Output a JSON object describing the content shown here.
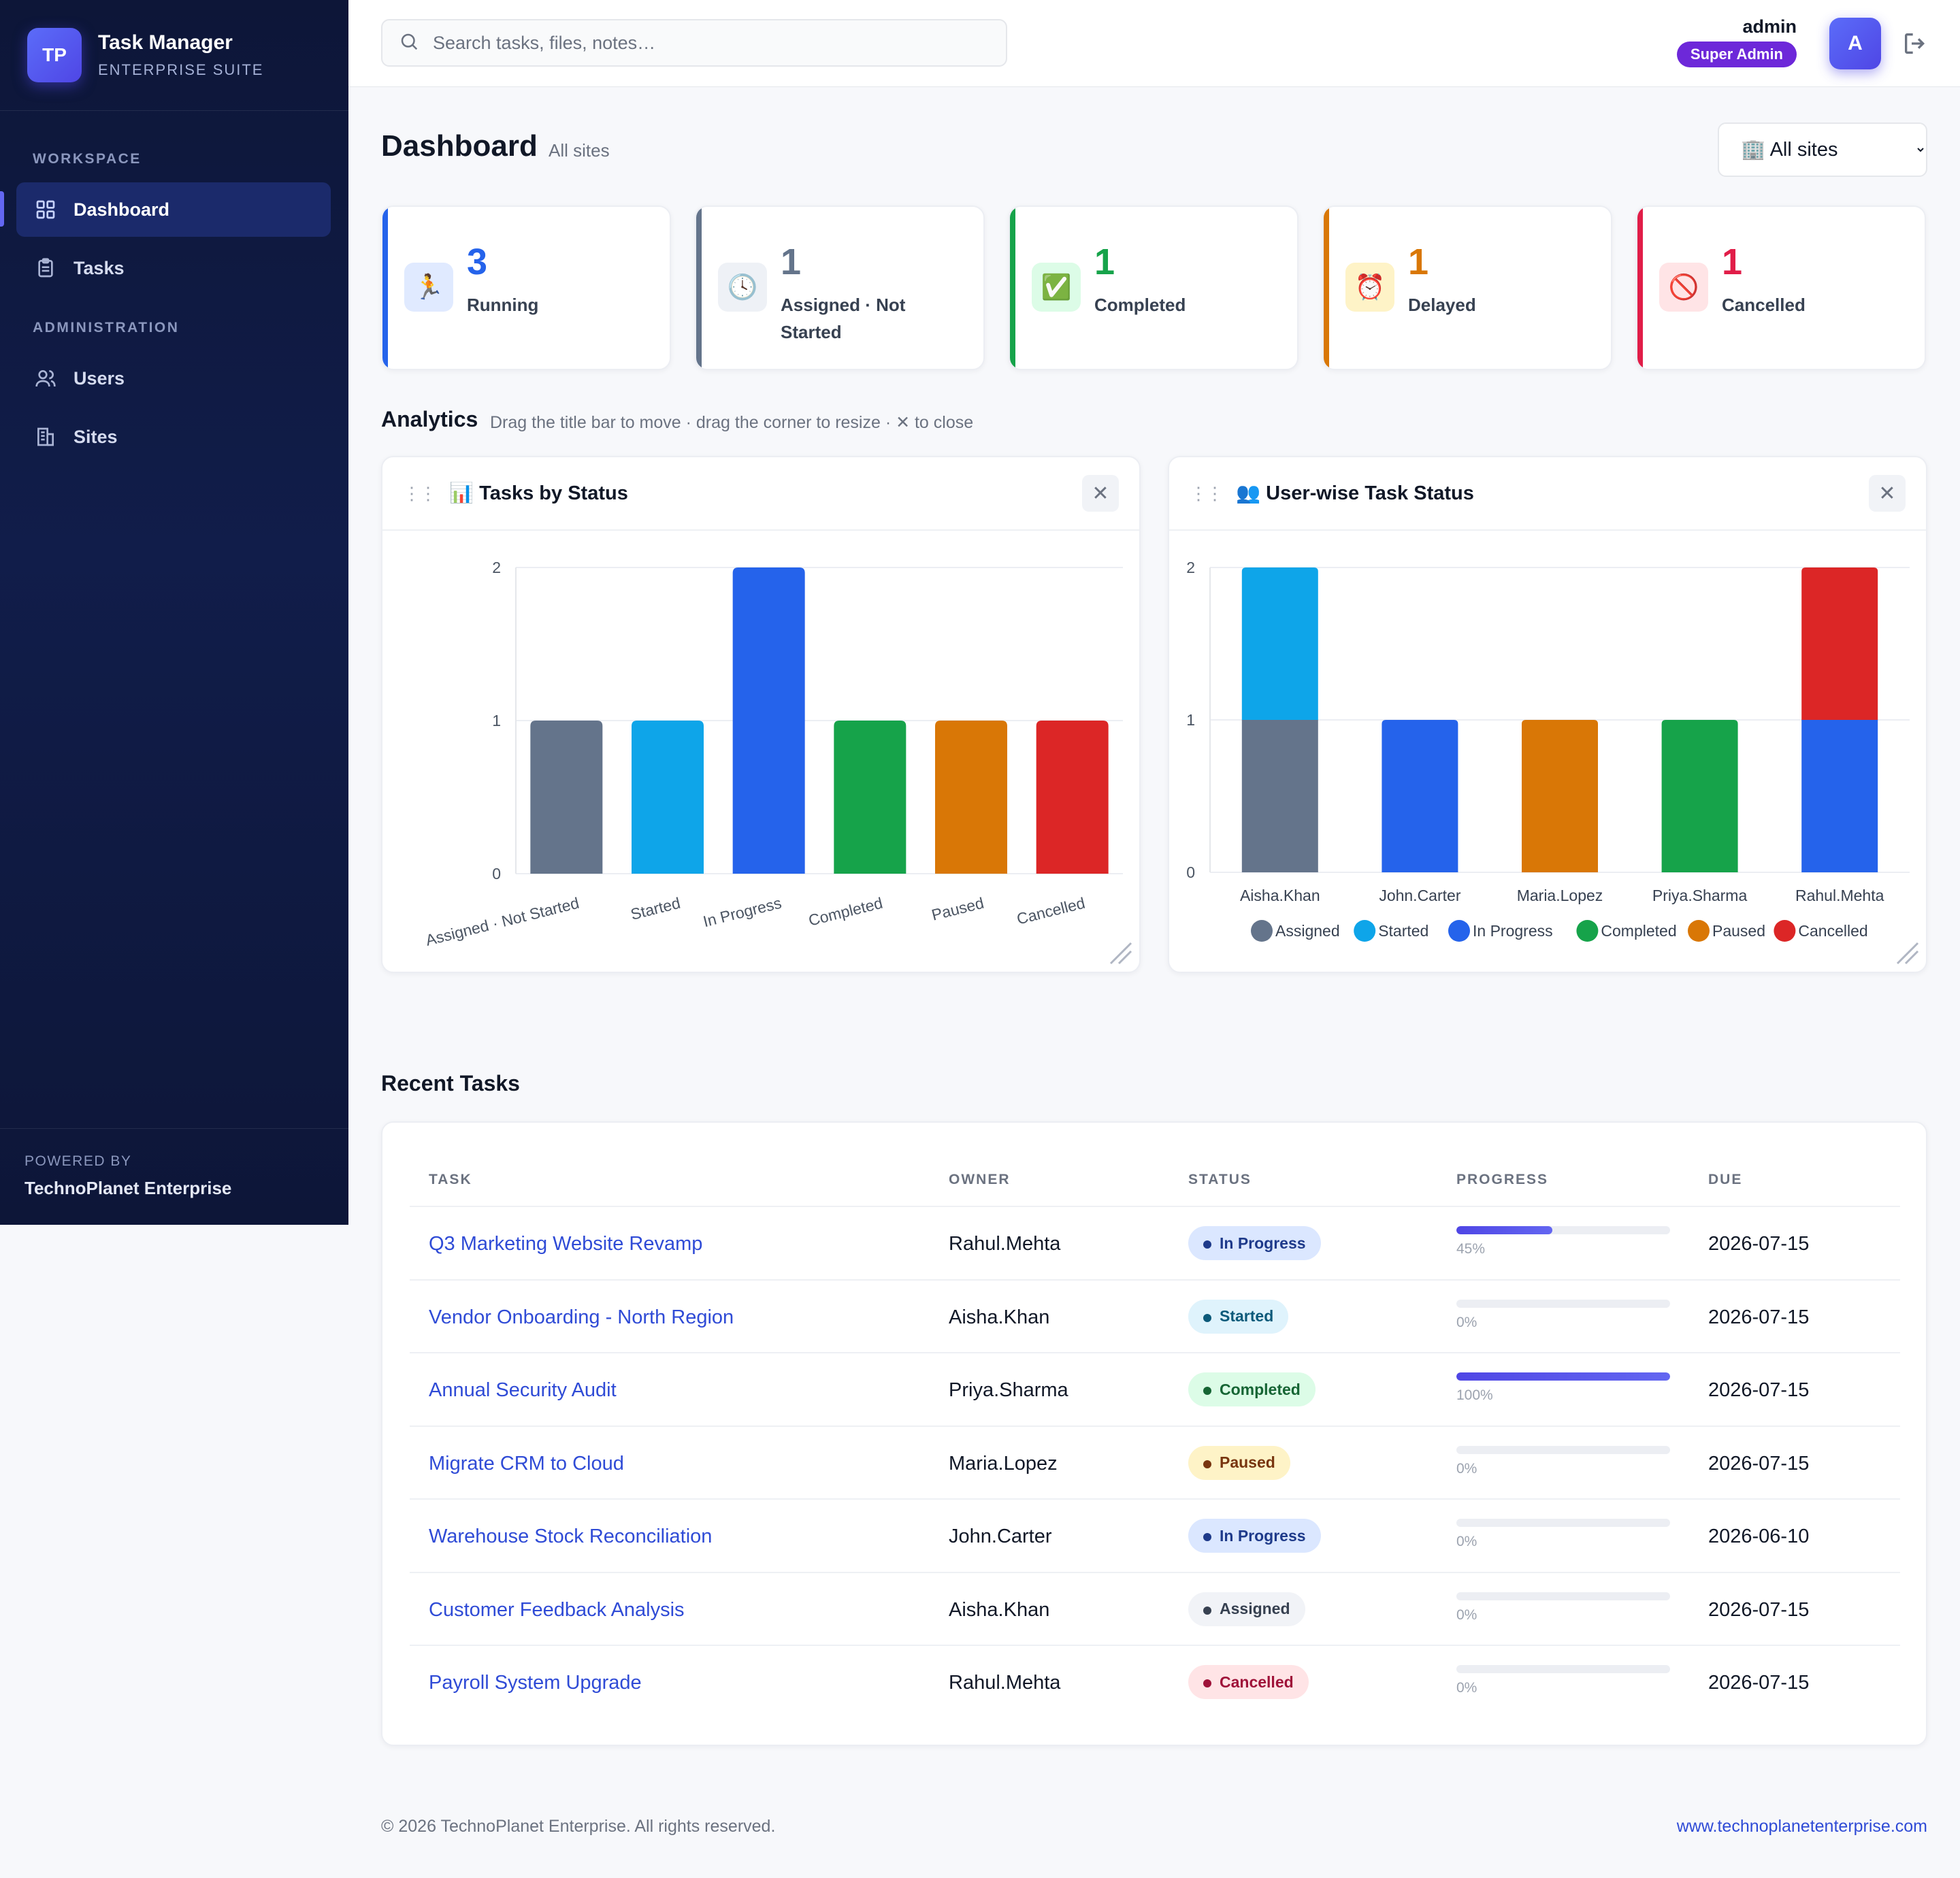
{
  "brand": {
    "logo": "TP",
    "title": "Task Manager",
    "subtitle": "ENTERPRISE SUITE"
  },
  "sidebar": {
    "workspace_label": "WORKSPACE",
    "admin_label": "ADMINISTRATION",
    "items": [
      {
        "label": "Dashboard",
        "icon": "grid-icon",
        "active": true
      },
      {
        "label": "Tasks",
        "icon": "clipboard-icon"
      },
      {
        "label": "Users",
        "icon": "users-icon"
      },
      {
        "label": "Sites",
        "icon": "building-icon"
      }
    ],
    "footer": {
      "small": "POWERED BY",
      "company": "TechnoPlanet Enterprise"
    }
  },
  "topbar": {
    "search_placeholder": "Search tasks, files, notes…",
    "user_name": "admin",
    "role": "Super Admin",
    "avatar": "A"
  },
  "page": {
    "title": "Dashboard",
    "subtitle": "All sites",
    "site_select": {
      "selected": "🏢 All sites"
    }
  },
  "stats": [
    {
      "value": "3",
      "label": "Running",
      "icon": "🏃",
      "color": "#2563eb",
      "bg": "#e0eaff"
    },
    {
      "value": "1",
      "label": "Assigned · Not Started",
      "icon": "🕓",
      "color": "#64748b",
      "bg": "#eef1f6"
    },
    {
      "value": "1",
      "label": "Completed",
      "icon": "✅",
      "color": "#16a34a",
      "bg": "#dcfce7"
    },
    {
      "value": "1",
      "label": "Delayed",
      "icon": "⏰",
      "color": "#d97706",
      "bg": "#fef3c7"
    },
    {
      "value": "1",
      "label": "Cancelled",
      "icon": "🚫",
      "color": "#e11d48",
      "bg": "#ffe4e6"
    }
  ],
  "analytics": {
    "title": "Analytics",
    "hint": "Drag the title bar to move · drag the corner to resize · ✕ to close"
  },
  "panels": {
    "status": {
      "title": "📊 Tasks by Status"
    },
    "user": {
      "title": "👥 User-wise Task Status"
    }
  },
  "chart_data": [
    {
      "type": "bar",
      "title": "Tasks by Status",
      "categories": [
        "Assigned · Not Started",
        "Started",
        "In Progress",
        "Completed",
        "Paused",
        "Cancelled"
      ],
      "values": [
        1,
        1,
        2,
        1,
        1,
        1
      ],
      "colors": [
        "#64748b",
        "#0ea5e9",
        "#2563eb",
        "#16a34a",
        "#d97706",
        "#dc2626"
      ],
      "yticks": [
        "0",
        "1",
        "2"
      ],
      "ylim": [
        0,
        2
      ],
      "grid": true
    },
    {
      "type": "bar",
      "stacked": true,
      "title": "User-wise Task Status",
      "categories": [
        "Aisha.Khan",
        "John.Carter",
        "Maria.Lopez",
        "Priya.Sharma",
        "Rahul.Mehta"
      ],
      "series": [
        {
          "name": "Assigned",
          "color": "#64748b",
          "values": [
            1,
            0,
            0,
            0,
            0
          ]
        },
        {
          "name": "Started",
          "color": "#0ea5e9",
          "values": [
            1,
            0,
            0,
            0,
            0
          ]
        },
        {
          "name": "In Progress",
          "color": "#2563eb",
          "values": [
            0,
            1,
            0,
            0,
            1
          ]
        },
        {
          "name": "Completed",
          "color": "#16a34a",
          "values": [
            0,
            0,
            0,
            1,
            0
          ]
        },
        {
          "name": "Paused",
          "color": "#d97706",
          "values": [
            0,
            0,
            1,
            0,
            0
          ]
        },
        {
          "name": "Cancelled",
          "color": "#dc2626",
          "values": [
            0,
            0,
            0,
            0,
            1
          ]
        }
      ],
      "yticks": [
        "0",
        "1",
        "2"
      ],
      "ylim": [
        0,
        2
      ],
      "legend": "bottom",
      "grid": true
    }
  ],
  "recent": {
    "title": "Recent Tasks",
    "columns": [
      "TASK",
      "OWNER",
      "STATUS",
      "PROGRESS",
      "DUE"
    ],
    "rows": [
      {
        "task": "Q3 Marketing Website Revamp",
        "owner": "Rahul.Mehta",
        "status": "In Progress",
        "progress": 45,
        "progress_label": "45%",
        "due": "2026-07-15"
      },
      {
        "task": "Vendor Onboarding - North Region",
        "owner": "Aisha.Khan",
        "status": "Started",
        "progress": 0,
        "progress_label": "0%",
        "due": "2026-07-15"
      },
      {
        "task": "Annual Security Audit",
        "owner": "Priya.Sharma",
        "status": "Completed",
        "progress": 100,
        "progress_label": "100%",
        "due": "2026-07-15"
      },
      {
        "task": "Migrate CRM to Cloud",
        "owner": "Maria.Lopez",
        "status": "Paused",
        "progress": 0,
        "progress_label": "0%",
        "due": "2026-07-15"
      },
      {
        "task": "Warehouse Stock Reconciliation",
        "owner": "John.Carter",
        "status": "In Progress",
        "progress": 0,
        "progress_label": "0%",
        "due": "2026-06-10"
      },
      {
        "task": "Customer Feedback Analysis",
        "owner": "Aisha.Khan",
        "status": "Assigned",
        "progress": 0,
        "progress_label": "0%",
        "due": "2026-07-15"
      },
      {
        "task": "Payroll System Upgrade",
        "owner": "Rahul.Mehta",
        "status": "Cancelled",
        "progress": 0,
        "progress_label": "0%",
        "due": "2026-07-15"
      }
    ],
    "status_styles": {
      "In Progress": {
        "bg": "#dbe7ff",
        "fg": "#1e3a8a"
      },
      "Started": {
        "bg": "#dff3fc",
        "fg": "#0c5a7a"
      },
      "Completed": {
        "bg": "#dcfce7",
        "fg": "#166534"
      },
      "Paused": {
        "bg": "#fef3c7",
        "fg": "#78350f"
      },
      "Assigned": {
        "bg": "#f1f3f7",
        "fg": "#374151"
      },
      "Cancelled": {
        "bg": "#ffe4e6",
        "fg": "#9f1239"
      }
    }
  },
  "footer": {
    "copyright": "© 2026 TechnoPlanet Enterprise. All rights reserved.",
    "link": "www.technoplanetenterprise.com"
  }
}
